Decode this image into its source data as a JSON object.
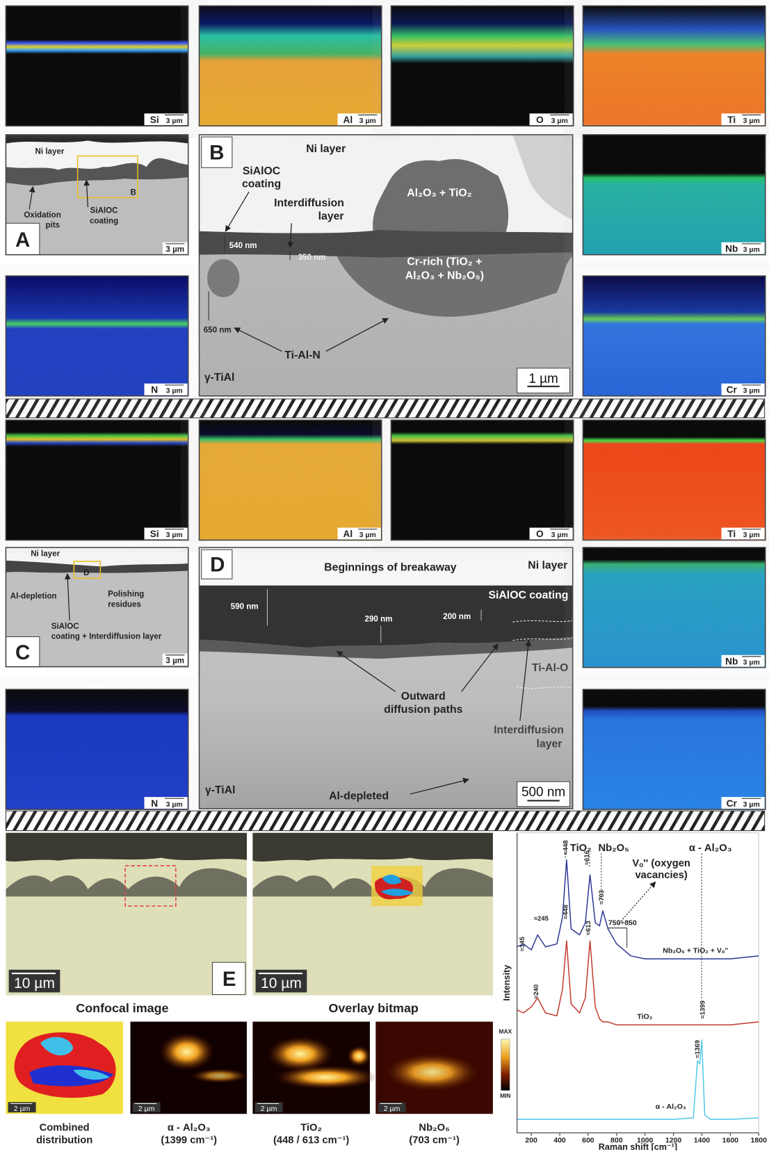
{
  "section_1": {
    "maps": [
      {
        "element": "Si",
        "scale": "3 µm"
      },
      {
        "element": "Al",
        "scale": "3 µm"
      },
      {
        "element": "O",
        "scale": "3 µm"
      },
      {
        "element": "Ti",
        "scale": "3 µm"
      },
      {
        "element": "Nb",
        "scale": "3 µm"
      },
      {
        "element": "N",
        "scale": "3 µm"
      },
      {
        "element": "Cr",
        "scale": "3 µm"
      }
    ],
    "panel_a": {
      "letter": "A",
      "ni_layer": "Ni layer",
      "oxidation_pits": [
        "Oxidation",
        "pits"
      ],
      "coating": [
        "SiAlOC",
        "coating"
      ],
      "inset_label": "B",
      "scale": "3 µm"
    },
    "panel_b": {
      "letter": "B",
      "ni_layer": "Ni layer",
      "coating": [
        "SiAlOC",
        "coating"
      ],
      "interdiffusion": [
        "Interdiffusion",
        "layer"
      ],
      "oxides": "Al₂O₃ + TiO₂",
      "thickness_1": "540 nm",
      "thickness_2": "350 nm",
      "cr_rich": [
        "Cr-rich (TiO₂ +",
        "Al₂O₃ + Nb₂O₅)"
      ],
      "thickness_3": "650 nm",
      "nitride": "Ti-Al-N",
      "substrate": "γ-TiAl",
      "scale": "1 µm"
    }
  },
  "section_2": {
    "maps": [
      {
        "element": "Si",
        "scale": "3 µm"
      },
      {
        "element": "Al",
        "scale": "3 µm"
      },
      {
        "element": "O",
        "scale": "3 µm"
      },
      {
        "element": "Ti",
        "scale": "3 µm"
      },
      {
        "element": "Nb",
        "scale": "3 µm"
      },
      {
        "element": "N",
        "scale": "3 µm"
      },
      {
        "element": "Cr",
        "scale": "3 µm"
      }
    ],
    "panel_c": {
      "letter": "C",
      "ni_layer": "Ni layer",
      "inset_label": "D",
      "depletion": "Al-depletion",
      "polishing": [
        "Polishing",
        "residues"
      ],
      "coating": [
        "SiAlOC",
        "coating + Interdiffusion layer"
      ],
      "scale": "3 µm"
    },
    "panel_d": {
      "letter": "D",
      "breakaway": "Beginnings of breakaway",
      "ni_layer": "Ni layer",
      "coating": "SiAlOC coating",
      "thickness_1": "590 nm",
      "thickness_2": "290 nm",
      "thickness_3": "200 nm",
      "oxide": "Ti-Al-O",
      "paths": [
        "Outward",
        "diffusion paths"
      ],
      "interdiffusion": [
        "Interdiffusion",
        "layer"
      ],
      "substrate": "γ-TiAl",
      "depleted": "Al-depleted",
      "scale": "500 nm"
    }
  },
  "section_3": {
    "panel_e": {
      "letter": "E",
      "scale_left": "10 µm",
      "scale_right": "10 µm",
      "caption_left": "Confocal image",
      "caption_right": "Overlay bitmap"
    },
    "maps": [
      {
        "scale": "2 µm",
        "caption": [
          "Combined",
          "distribution"
        ]
      },
      {
        "scale": "2 µm",
        "caption": [
          "α - Al₂O₃",
          "(1399 cm⁻¹)"
        ]
      },
      {
        "scale": "2 µm",
        "caption": [
          "TiO₂",
          "(448 / 613 cm⁻¹)"
        ]
      },
      {
        "scale": "2 µm",
        "caption": [
          "Nb₂O₅",
          "(703 cm⁻¹)"
        ]
      }
    ],
    "colorbar": {
      "max": "MAX",
      "min": "MIN"
    }
  },
  "chart_data": {
    "type": "line",
    "x_label": "Raman shift [cm⁻¹]",
    "y_label": "Intensity",
    "x": [
      100,
      145,
      200,
      245,
      300,
      380,
      420,
      448,
      480,
      540,
      580,
      613,
      650,
      680,
      703,
      740,
      800,
      850,
      900,
      1000,
      1200,
      1340,
      1369,
      1385,
      1399,
      1420,
      1460,
      1600,
      1800
    ],
    "series": [
      {
        "name": "Nb₂O₅ + TiO₂ + Vₒ''",
        "color": "#2b3593",
        "values": [
          62,
          63,
          61,
          66,
          62,
          63,
          72,
          91,
          68,
          66,
          70,
          86,
          70,
          69,
          74,
          68,
          63,
          61,
          59,
          58,
          58,
          58,
          58,
          58,
          58,
          58,
          58,
          58,
          59
        ]
      },
      {
        "name": "TiO₂",
        "color": "#c0392b",
        "values": [
          41,
          40,
          42,
          45,
          40,
          39,
          48,
          64,
          43,
          40,
          45,
          64,
          42,
          38,
          37,
          37,
          36,
          36,
          36,
          36,
          36,
          36,
          36,
          36,
          36,
          36,
          36,
          36,
          37
        ]
      },
      {
        "name": "α - Al₂O₃",
        "color": "#4ec8e6",
        "values": [
          4.5,
          4.5,
          4.5,
          4.5,
          4.5,
          4.5,
          4.5,
          4.5,
          4.5,
          4.5,
          4.5,
          4.5,
          4.5,
          4.5,
          4.5,
          4.5,
          4.5,
          4.5,
          4.5,
          4.5,
          4.5,
          5,
          24,
          23,
          31,
          6,
          4.5,
          4.5,
          5
        ]
      }
    ],
    "xlim": [
      100,
      1800
    ],
    "xticks": [
      200,
      400,
      600,
      800,
      1000,
      1200,
      1400,
      1600,
      1800
    ],
    "ylim": [
      0,
      100
    ],
    "annotations": {
      "headers": [
        "TiO₂",
        "Nb₂O₅",
        "α - Al₂O₃"
      ],
      "vacancies": [
        "Vₒ'' (oxygen",
        "vacancies)"
      ],
      "range": "750÷850",
      "peaks": [
        "≈145",
        "≈245",
        "≈448",
        "≈616",
        "≈703",
        "≈448",
        "≈613",
        "≈240",
        "≈1399",
        "≈1369"
      ]
    }
  }
}
